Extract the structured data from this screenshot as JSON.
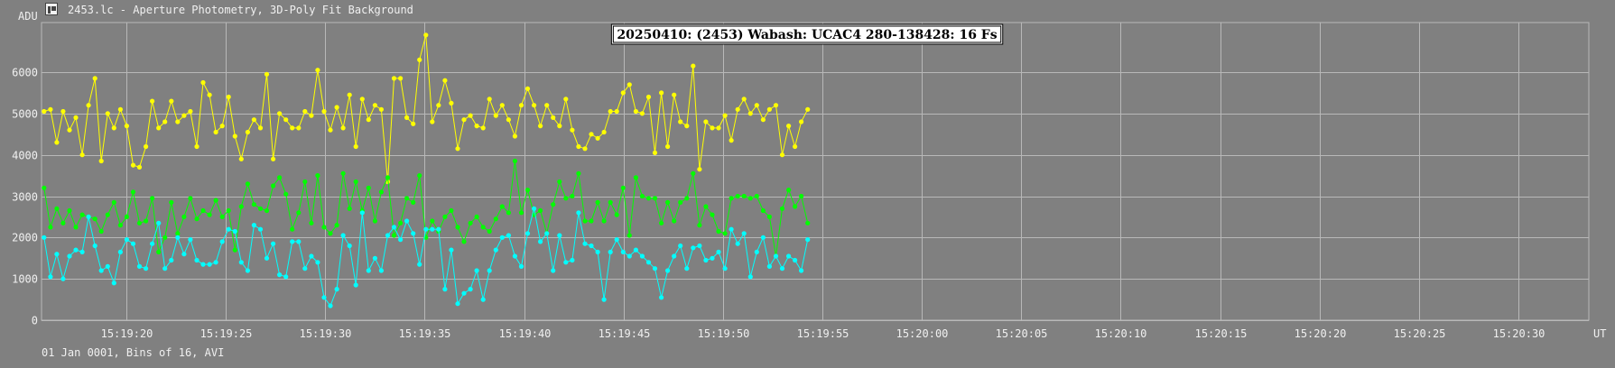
{
  "window": {
    "title": "2453.lc - Aperture Photometry, 3D-Poly Fit Background"
  },
  "footer": {
    "text": "01 Jan 0001, Bins of 16, AVI"
  },
  "colors": {
    "background": "#808080",
    "grid": "#b8b8b8",
    "axis_text": "#f0f0f0",
    "title_box": "#ffffff",
    "series_colors": [
      "#ffff00",
      "#00ff00",
      "#00ffff"
    ]
  },
  "chart_data": {
    "type": "line",
    "title": "20250410: (2453) Wabash: UCAC4 280-138428: 16 Fs",
    "xlabel": "UT",
    "ylabel": "ADU",
    "x_start": "15:19:15.86",
    "x_step_seconds": 0.32,
    "x_ticks": [
      "15:19:20",
      "15:19:25",
      "15:19:30",
      "15:19:35",
      "15:19:40",
      "15:19:45",
      "15:19:50",
      "15:19:55",
      "15:20:00",
      "15:20:05",
      "15:20:10",
      "15:20:15",
      "15:20:20",
      "15:20:25",
      "15:20:30"
    ],
    "y_ticks": [
      "0",
      "1000",
      "2000",
      "3000",
      "4000",
      "5000",
      "6000"
    ],
    "ylim": [
      0,
      7200
    ],
    "grid": true,
    "legend": false,
    "series": [
      {
        "color": "#ffff00",
        "values": [
          5050,
          5100,
          4300,
          5050,
          4600,
          4900,
          4000,
          5200,
          5850,
          3850,
          5000,
          4650,
          5100,
          4700,
          3750,
          3700,
          4200,
          5300,
          4650,
          4800,
          5300,
          4800,
          4950,
          5050,
          4200,
          5750,
          5450,
          4550,
          4700,
          5400,
          4450,
          3900,
          4550,
          4850,
          4650,
          5950,
          3900,
          5000,
          4850,
          4650,
          4650,
          5050,
          4950,
          6050,
          5050,
          4600,
          5150,
          4650,
          5450,
          4200,
          5350,
          4850,
          5200,
          5100,
          3350,
          5850,
          5850,
          4900,
          4750,
          6300,
          6900,
          4800,
          5200,
          5800,
          5250,
          4150,
          4850,
          4950,
          4700,
          4650,
          5350,
          4950,
          5200,
          4850,
          4450,
          5200,
          5600,
          5200,
          4700,
          5200,
          4900,
          4700,
          5350,
          4600,
          4200,
          4150,
          4500,
          4400,
          4550,
          5050,
          5050,
          5500,
          5700,
          5050,
          5000,
          5400,
          4050,
          5500,
          4200,
          5450,
          4800,
          4700,
          6150,
          3650,
          4800,
          4650,
          4650,
          4950,
          4350,
          5100,
          5350,
          5000,
          5200,
          4850,
          5100,
          5200,
          4000,
          4700,
          4200,
          4800,
          5100
        ]
      },
      {
        "color": "#00ff00",
        "values": [
          3200,
          2250,
          2700,
          2350,
          2650,
          2250,
          2550,
          2500,
          2450,
          2150,
          2550,
          2850,
          2300,
          2500,
          3100,
          2350,
          2400,
          2950,
          1650,
          2000,
          2850,
          2100,
          2500,
          2950,
          2450,
          2650,
          2550,
          2900,
          2500,
          2650,
          1700,
          2750,
          3300,
          2800,
          2700,
          2650,
          3250,
          3450,
          3050,
          2200,
          2600,
          3350,
          2350,
          3500,
          2250,
          2100,
          2300,
          3550,
          2700,
          3350,
          2650,
          3200,
          2400,
          3100,
          3450,
          2050,
          2350,
          2950,
          2850,
          3500,
          2000,
          2400,
          2150,
          2500,
          2650,
          2250,
          1900,
          2350,
          2500,
          2250,
          2150,
          2450,
          2750,
          2600,
          3850,
          2600,
          3150,
          2550,
          2650,
          2100,
          2800,
          3350,
          2950,
          3000,
          3550,
          2400,
          2400,
          2850,
          2400,
          2850,
          2550,
          3200,
          2050,
          3450,
          3000,
          2950,
          2950,
          2350,
          2850,
          2400,
          2850,
          2950,
          3550,
          2300,
          2750,
          2550,
          2150,
          2100,
          2950,
          3000,
          3000,
          2950,
          3000,
          2650,
          2500,
          1550,
          2700,
          3150,
          2750,
          3000,
          2350
        ]
      },
      {
        "color": "#00ffff",
        "values": [
          2000,
          1050,
          1600,
          1000,
          1550,
          1700,
          1650,
          2500,
          1800,
          1200,
          1300,
          900,
          1650,
          1950,
          1850,
          1300,
          1250,
          1850,
          2350,
          1250,
          1450,
          2000,
          1600,
          1950,
          1450,
          1350,
          1350,
          1400,
          1900,
          2200,
          2150,
          1400,
          1200,
          2300,
          2200,
          1500,
          1850,
          1100,
          1050,
          1900,
          1900,
          1250,
          1550,
          1400,
          550,
          350,
          750,
          2050,
          1800,
          850,
          2600,
          1200,
          1500,
          1200,
          2050,
          2250,
          1950,
          2400,
          2100,
          1350,
          2200,
          2200,
          2200,
          750,
          1700,
          400,
          650,
          750,
          1200,
          500,
          1200,
          1700,
          2000,
          2050,
          1550,
          1300,
          2100,
          2700,
          1900,
          2100,
          1200,
          2050,
          1400,
          1450,
          2600,
          1850,
          1800,
          1650,
          500,
          1650,
          1950,
          1650,
          1550,
          1700,
          1550,
          1400,
          1250,
          550,
          1200,
          1550,
          1800,
          1250,
          1750,
          1800,
          1450,
          1500,
          1650,
          1250,
          2200,
          1850,
          2100,
          1050,
          1650,
          2000,
          1300,
          1550,
          1250,
          1550,
          1450,
          1200,
          1950
        ]
      }
    ]
  }
}
